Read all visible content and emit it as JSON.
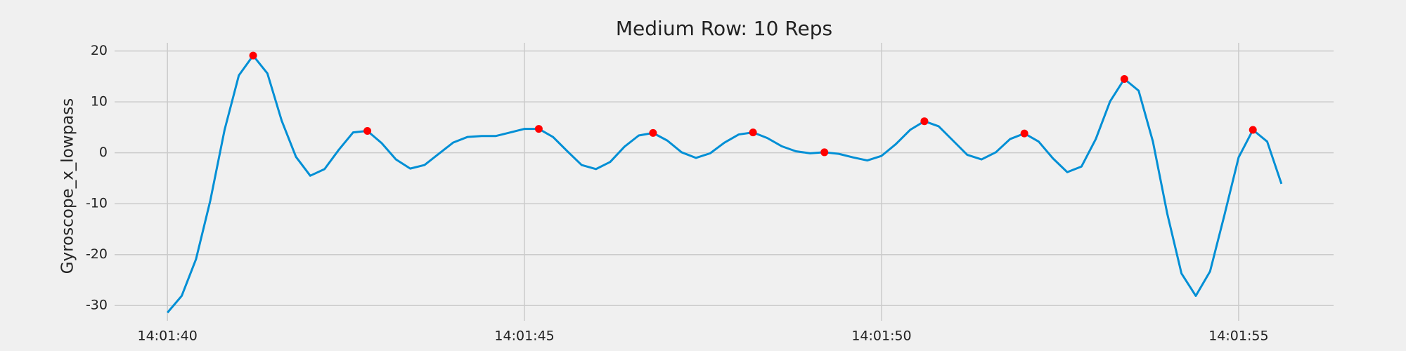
{
  "chart_data": {
    "type": "line",
    "title": "Medium Row: 10 Reps",
    "ylabel": "Gyroscope_x_lowpass",
    "x": [
      40,
      40.2,
      40.4,
      40.6,
      40.8,
      41,
      41.2,
      41.4,
      41.6,
      41.8,
      42,
      42.2,
      42.4,
      42.6,
      42.8,
      43,
      43.2,
      43.4,
      43.6,
      43.8,
      44,
      44.2,
      44.4,
      44.6,
      44.8,
      45,
      45.2,
      45.4,
      45.6,
      45.8,
      46,
      46.2,
      46.4,
      46.6,
      46.8,
      47,
      47.2,
      47.4,
      47.6,
      47.8,
      48,
      48.2,
      48.4,
      48.6,
      48.8,
      49,
      49.2,
      49.4,
      49.6,
      49.8,
      50,
      50.2,
      50.4,
      50.6,
      50.8,
      51,
      51.2,
      51.4,
      51.6,
      51.8,
      52,
      52.2,
      52.4,
      52.6,
      52.8,
      53,
      53.2,
      53.4,
      53.6,
      53.8,
      54,
      54.2,
      54.4,
      54.6,
      54.8,
      55,
      55.2,
      55.4,
      55.6
    ],
    "series": [
      {
        "color": "#008fd5",
        "marker": "line",
        "values": [
          -31.4,
          -28.1,
          -20.9,
          -9.4,
          4.5,
          15.2,
          19.1,
          15.6,
          6.3,
          -0.8,
          -4.5,
          -3.2,
          0.6,
          4.0,
          4.3,
          1.9,
          -1.3,
          -3.1,
          -2.4,
          -0.2,
          2.0,
          3.1,
          3.3,
          3.3,
          4.0,
          4.7,
          4.7,
          3.1,
          0.3,
          -2.4,
          -3.2,
          -1.8,
          1.2,
          3.4,
          3.9,
          2.4,
          0.1,
          -1.0,
          -0.1,
          2.0,
          3.6,
          4.0,
          2.9,
          1.3,
          0.3,
          -0.1,
          0.1,
          -0.2,
          -0.9,
          -1.5,
          -0.6,
          1.7,
          4.5,
          6.2,
          5.2,
          2.4,
          -0.4,
          -1.3,
          0.1,
          2.7,
          3.8,
          2.2,
          -1.1,
          -3.8,
          -2.7,
          2.7,
          10.1,
          14.5,
          12.2,
          2.2,
          -11.9,
          -23.7,
          -28.1,
          -23.3,
          -12.3,
          -0.9,
          4.5,
          2.2,
          -6.1
        ]
      },
      {
        "color": "#ff0000",
        "marker": "dot",
        "x": [
          41.2,
          42.8,
          45.2,
          46.8,
          48.2,
          49.2,
          50.6,
          52,
          53.4,
          55.2
        ],
        "values": [
          19.1,
          4.3,
          4.7,
          3.9,
          4.0,
          0.1,
          6.2,
          3.8,
          14.5,
          4.5
        ]
      }
    ],
    "xlim": [
      39.26,
      56.33
    ],
    "xticks": [
      {
        "value": 40,
        "label": "14:01:40"
      },
      {
        "value": 45,
        "label": "14:01:45"
      },
      {
        "value": 50,
        "label": "14:01:50"
      },
      {
        "value": 55,
        "label": "14:01:55"
      }
    ],
    "ylim": [
      -33,
      21.6
    ],
    "yticks": [
      20,
      10,
      0,
      -10,
      -20,
      -30
    ],
    "grid": true
  }
}
